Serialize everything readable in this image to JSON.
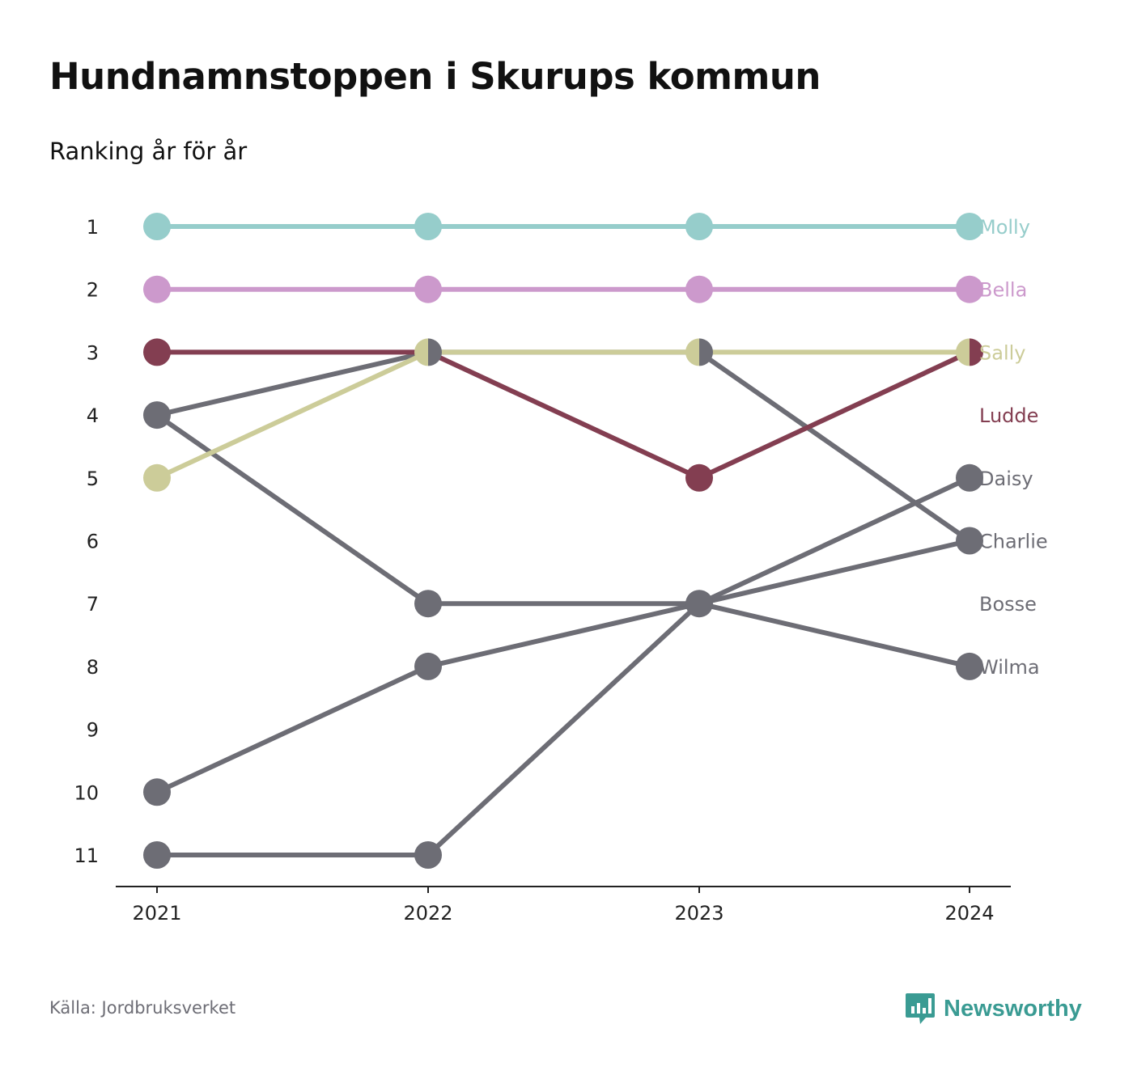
{
  "title": "Hundnamnstoppen i Skurups kommun",
  "subtitle": "Ranking år för år",
  "source": "Källa: Jordbruksverket",
  "brand": {
    "name": "Newsworthy",
    "icon": "newsworthy-logo-icon",
    "color": "#3a9b93"
  },
  "chart_data": {
    "type": "line",
    "subtype": "bump",
    "title": "Hundnamnstoppen i Skurups kommun",
    "subtitle": "Ranking år för år",
    "x": [
      "2021",
      "2022",
      "2023",
      "2024"
    ],
    "y_ticks": [
      "1",
      "2",
      "3",
      "4",
      "5",
      "6",
      "7",
      "8",
      "9",
      "10",
      "11"
    ],
    "y_range": [
      1,
      11
    ],
    "y_inverted": true,
    "grid": false,
    "legend": "direct labels on right",
    "series": [
      {
        "name": "Molly",
        "color": "#96cdcb",
        "values": [
          1,
          1,
          1,
          1
        ]
      },
      {
        "name": "Bella",
        "color": "#cc99cc",
        "values": [
          2,
          2,
          2,
          2
        ]
      },
      {
        "name": "Sally",
        "color": "#cccc99",
        "values": [
          5,
          3,
          3,
          3
        ]
      },
      {
        "name": "Ludde",
        "color": "#833e51",
        "values": [
          3,
          3,
          5,
          3
        ]
      },
      {
        "name": "Daisy",
        "color": "#6d6d75",
        "values": [
          11,
          11,
          7,
          5
        ]
      },
      {
        "name": "Charlie",
        "color": "#6d6d75",
        "values": [
          4,
          3,
          3,
          6
        ]
      },
      {
        "name": "Bosse",
        "color": "#6d6d75",
        "values": [
          10,
          8,
          7,
          6
        ]
      },
      {
        "name": "Wilma",
        "color": "#6d6d75",
        "values": [
          4,
          7,
          7,
          8
        ]
      }
    ],
    "label_ranks": [
      1,
      2,
      3,
      4,
      5,
      6,
      7,
      8
    ]
  }
}
